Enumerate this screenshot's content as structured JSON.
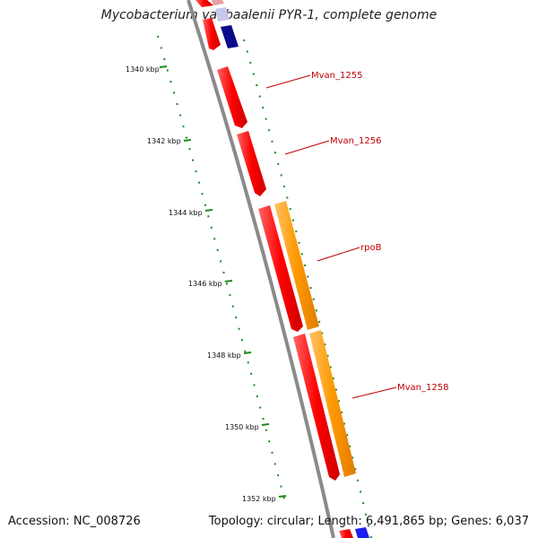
{
  "title": "Mycobacterium vanbaalenii PYR-1, complete genome",
  "accession": "Accession: NC_008726",
  "summary": "Topology: circular; Length: 6,491,865 bp; Genes: 6,037",
  "colors": {
    "backbone": "#808080",
    "ticks": "#1a8a1a",
    "gene_forward": "#ff0000",
    "gene_highlight": "#ff9900",
    "gene_blue": "#0000cc",
    "label": "#c00000"
  },
  "scale": {
    "unit": "kbp",
    "labels": [
      "1340 kbp",
      "1342 kbp",
      "1344 kbp",
      "1346 kbp",
      "1348 kbp",
      "1350 kbp",
      "1352 kbp"
    ]
  },
  "gene_labels": [
    "Mvan_1255",
    "Mvan_1256",
    "rpoB",
    "Mvan_1258"
  ]
}
